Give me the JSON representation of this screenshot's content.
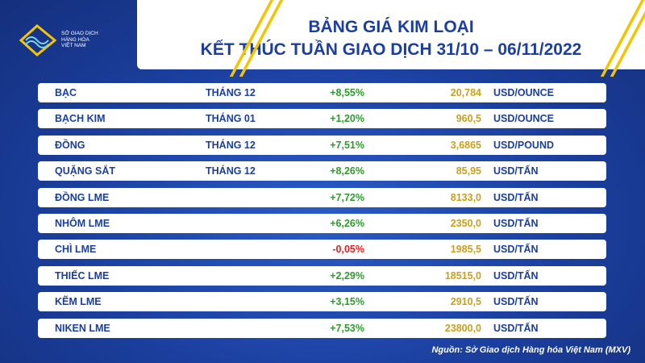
{
  "logo": {
    "lines": [
      "SỞ GIAO DỊCH",
      "HÀNG HÓA",
      "VIỆT NAM"
    ]
  },
  "header": {
    "title": "BẢNG GIÁ KIM LOẠI",
    "subtitle": "KẾT THÚC TUẦN GIAO DỊCH 31/10 – 06/11/2022"
  },
  "table": {
    "rows": [
      {
        "name": "BẠC",
        "month": "THÁNG 12",
        "change": "+8,55%",
        "price": "20,784",
        "unit": "USD/OUNCE"
      },
      {
        "name": "BẠCH KIM",
        "month": "THÁNG 01",
        "change": "+1,20%",
        "price": "960,5",
        "unit": "USD/OUNCE"
      },
      {
        "name": "ĐỒNG",
        "month": "THÁNG 12",
        "change": "+7,51%",
        "price": "3,6865",
        "unit": "USD/POUND"
      },
      {
        "name": "QUẶNG SẮT",
        "month": "THÁNG 12",
        "change": "+8,26%",
        "price": "85,95",
        "unit": "USD/TẤN"
      },
      {
        "name": "ĐỒNG LME",
        "change": "+7,72%",
        "price": "8133,0",
        "unit": "USD/TẤN"
      },
      {
        "name": "NHÔM LME",
        "change": "+6,26%",
        "price": "2350,0",
        "unit": "USD/TẤN"
      },
      {
        "name": "CHÌ LME",
        "change": "-0,05%",
        "price": "1985,5",
        "unit": "USD/TẤN"
      },
      {
        "name": "THIẾC LME",
        "change": "+2,29%",
        "price": "18515,0",
        "unit": "USD/TẤN"
      },
      {
        "name": "KẼM LME",
        "change": "+3,15%",
        "price": "2910,5",
        "unit": "USD/TẤN"
      },
      {
        "name": "NIKEN LME",
        "change": "+7,53%",
        "price": "23800,0",
        "unit": "USD/TẤN"
      }
    ]
  },
  "source": "Nguồn: Sở Giao dịch Hàng hóa Việt Nam (MXV)"
}
